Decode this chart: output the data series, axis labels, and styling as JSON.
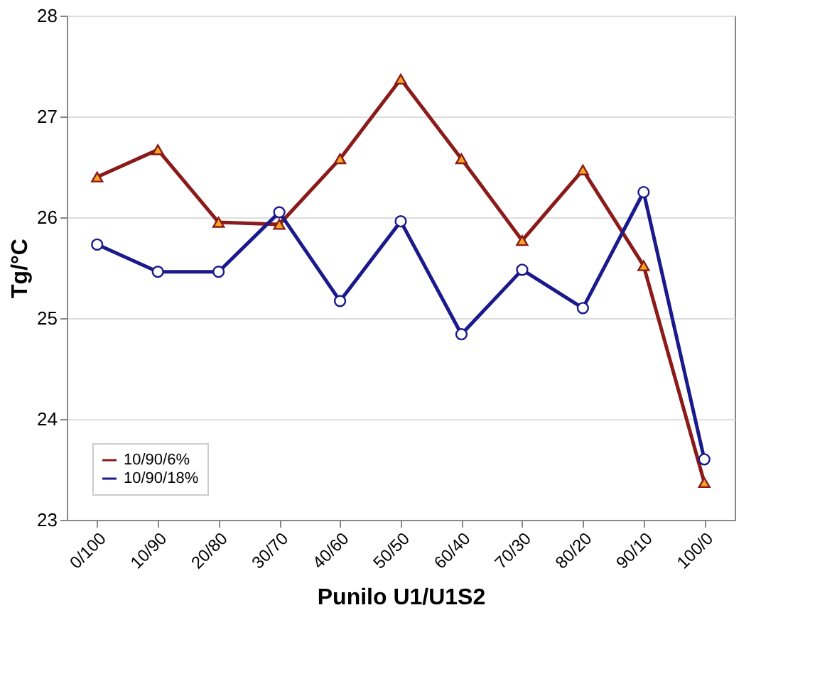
{
  "chart_data": {
    "type": "line",
    "xlabel": "Punilo U1/U1S2",
    "ylabel": "Tg/°C",
    "categories": [
      "0/100",
      "10/90",
      "20/80",
      "30/70",
      "40/60",
      "50/50",
      "60/40",
      "70/30",
      "80/20",
      "90/10",
      "100/0"
    ],
    "series": [
      {
        "name": "10/90/6%",
        "color": "#8b1a1a",
        "marker": "triangle",
        "values": [
          26.4,
          26.67,
          25.95,
          25.93,
          26.58,
          27.37,
          26.58,
          25.77,
          26.47,
          25.52,
          23.37
        ]
      },
      {
        "name": "10/90/18%",
        "color": "#1a1a8c",
        "marker": "circle",
        "values": [
          25.73,
          25.46,
          25.46,
          26.05,
          25.17,
          25.96,
          24.84,
          25.48,
          25.1,
          26.25,
          23.6
        ]
      }
    ],
    "ylim": [
      23,
      28
    ],
    "yticks": [
      23,
      24,
      25,
      26,
      27,
      28
    ],
    "grid": "y",
    "legend": "bottom left"
  }
}
